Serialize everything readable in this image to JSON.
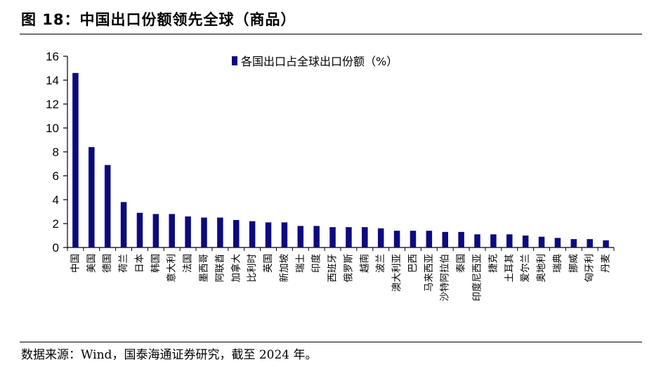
{
  "figure": {
    "title": "图 18：中国出口份额领先全球（商品）",
    "source": "数据来源：Wind，国泰海通证券研究，截至 2024 年。"
  },
  "colors": {
    "bar": "#0B0B80",
    "axis": "#000000"
  },
  "chart_data": {
    "type": "bar",
    "title": "",
    "xlabel": "",
    "ylabel": "",
    "ylim": [
      0,
      16
    ],
    "yticks": [
      0,
      2,
      4,
      6,
      8,
      10,
      12,
      14,
      16
    ],
    "grid": false,
    "legend_position": "top-center",
    "categories": [
      "中国",
      "美国",
      "德国",
      "荷兰",
      "日本",
      "韩国",
      "意大利",
      "法国",
      "墨西哥",
      "阿联酋",
      "加拿大",
      "比利时",
      "英国",
      "新加坡",
      "瑞士",
      "印度",
      "西班牙",
      "俄罗斯",
      "越南",
      "波兰",
      "澳大利亚",
      "巴西",
      "马来西亚",
      "沙特阿拉伯",
      "泰国",
      "印度尼西亚",
      "捷克",
      "土耳其",
      "爱尔兰",
      "奥地利",
      "瑞典",
      "挪威",
      "匈牙利",
      "丹麦"
    ],
    "series": [
      {
        "name": "各国出口占全球出口份额（%）",
        "values": [
          14.6,
          8.4,
          6.9,
          3.8,
          2.9,
          2.8,
          2.8,
          2.6,
          2.5,
          2.5,
          2.3,
          2.2,
          2.1,
          2.1,
          1.8,
          1.8,
          1.7,
          1.7,
          1.7,
          1.6,
          1.4,
          1.4,
          1.4,
          1.3,
          1.3,
          1.1,
          1.1,
          1.1,
          1.0,
          0.9,
          0.8,
          0.7,
          0.7,
          0.6
        ]
      }
    ]
  }
}
